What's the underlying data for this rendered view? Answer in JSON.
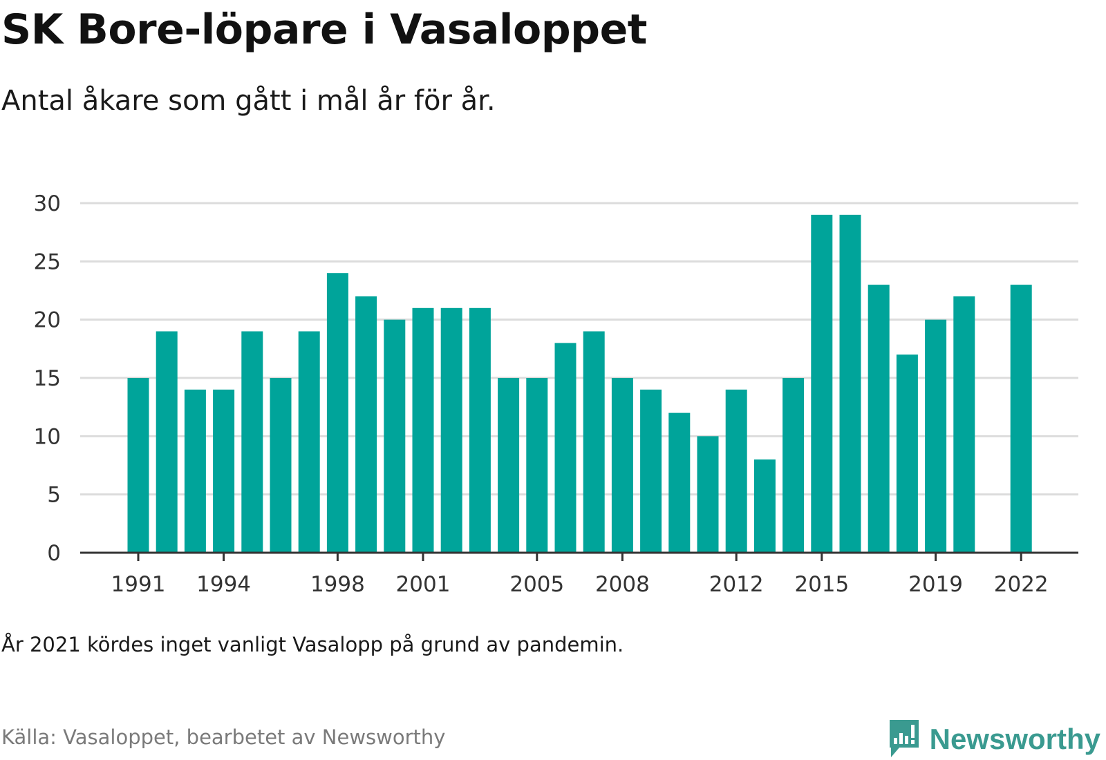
{
  "header": {
    "title": "SK Bore-löpare i Vasaloppet",
    "subtitle": "Antal åkare som gått i mål år för år."
  },
  "footer": {
    "note": "År 2021 kördes inget vanligt Vasalopp på grund av pandemin.",
    "source": "Källa: Vasaloppet, bearbetet av Newsworthy",
    "brand": "Newsworthy",
    "brand_icon": "newsworthy-logo-icon"
  },
  "colors": {
    "bar": "#00a49a",
    "grid": "#dcdcdc",
    "axis": "#333333",
    "brand": "#3a9a90"
  },
  "chart_data": {
    "type": "bar",
    "title": "SK Bore-löpare i Vasaloppet",
    "subtitle": "Antal åkare som gått i mål år för år.",
    "xlabel": "",
    "ylabel": "",
    "categories": [
      1991,
      1992,
      1993,
      1994,
      1995,
      1996,
      1997,
      1998,
      1999,
      2000,
      2001,
      2002,
      2003,
      2004,
      2005,
      2006,
      2007,
      2008,
      2009,
      2010,
      2011,
      2012,
      2013,
      2014,
      2015,
      2016,
      2017,
      2018,
      2019,
      2020,
      2021,
      2022
    ],
    "values": [
      15,
      19,
      14,
      14,
      19,
      15,
      19,
      24,
      22,
      20,
      21,
      21,
      21,
      15,
      15,
      18,
      19,
      15,
      14,
      12,
      10,
      14,
      8,
      15,
      29,
      29,
      23,
      17,
      20,
      22,
      null,
      23
    ],
    "x_tick_labels": [
      "1991",
      "1994",
      "1998",
      "2001",
      "2005",
      "2008",
      "2012",
      "2015",
      "2019",
      "2022"
    ],
    "y_ticks": [
      0,
      5,
      10,
      15,
      20,
      25,
      30
    ],
    "ylim": [
      0,
      30
    ],
    "grid": true,
    "legend": "none"
  }
}
